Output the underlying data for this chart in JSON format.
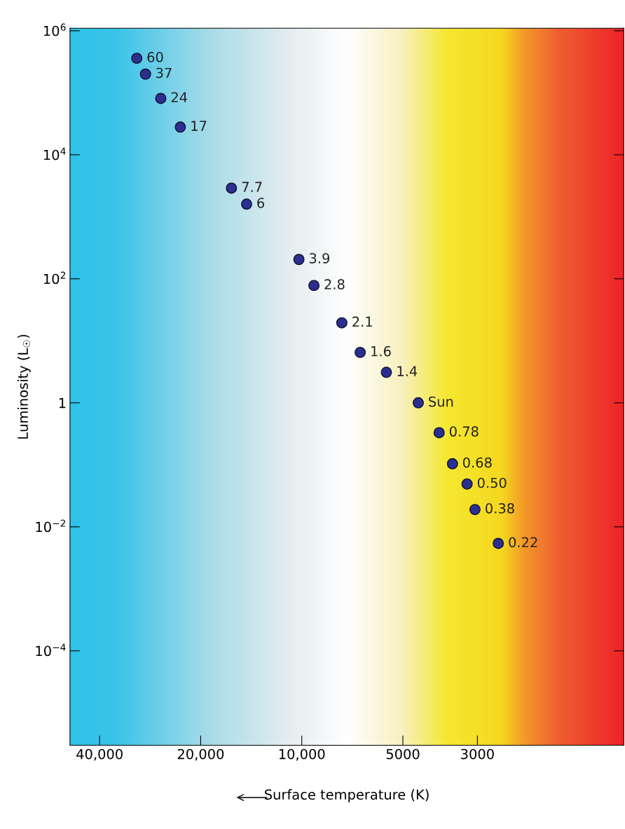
{
  "chart_data": {
    "type": "scatter",
    "xlabel": "Surface temperature (K)",
    "ylabel": "Luminosity (L$_{☉}$)",
    "log": "xy",
    "xlim": [
      49000,
      1100
    ],
    "xticks": [
      {
        "value": 40000,
        "label": "40,000"
      },
      {
        "value": 20000,
        "label": "20,000"
      },
      {
        "value": 10000,
        "label": "10,000"
      },
      5000,
      3000
    ],
    "ylim": [
      3e-06,
      1100000.0
    ],
    "yticks": [
      {
        "value": 0.0001,
        "label": "10$^{−4}$"
      },
      {
        "value": 0.01,
        "label": "10$^{−2}$"
      },
      1,
      {
        "value": 100,
        "label": "10$^{2}$"
      },
      {
        "value": 10000,
        "label": "10$^{4}$"
      },
      {
        "value": 1000000,
        "label": "10$^{6}$"
      }
    ],
    "grid": false,
    "marker": "circle",
    "x": [
      31000,
      29200,
      26300,
      23000,
      16200,
      14600,
      10200,
      9200,
      7600,
      6700,
      5600,
      4500,
      3900,
      3560,
      3220,
      3050,
      2600
    ],
    "series": [
      {
        "color": "#2b2f8f",
        "values": [
          360000,
          200000,
          81000,
          28000,
          2900,
          1600,
          205,
          78,
          19.5,
          6.5,
          3.1,
          1,
          0.33,
          0.104,
          0.049,
          0.019,
          0.0054
        ]
      }
    ],
    "annotations": [
      {
        "text": "60",
        "x": 31000,
        "y": 360000
      },
      {
        "text": "37",
        "x": 29200,
        "y": 200000
      },
      {
        "text": "24",
        "x": 26300,
        "y": 81000
      },
      {
        "text": "17",
        "x": 23000,
        "y": 28000
      },
      {
        "text": "7.7",
        "x": 16200,
        "y": 2900
      },
      {
        "text": "6",
        "x": 14600,
        "y": 1600
      },
      {
        "text": "3.9",
        "x": 10200,
        "y": 205
      },
      {
        "text": "2.8",
        "x": 9200,
        "y": 78
      },
      {
        "text": "2.1",
        "x": 7600,
        "y": 19.5
      },
      {
        "text": "1.6",
        "x": 6700,
        "y": 6.5
      },
      {
        "text": "1.4",
        "x": 5600,
        "y": 3.1
      },
      {
        "text": "Sun",
        "x": 4500,
        "y": 1
      },
      {
        "text": "0.78",
        "x": 3900,
        "y": 0.33
      },
      {
        "text": "0.68",
        "x": 3560,
        "y": 0.104
      },
      {
        "text": "0.50",
        "x": 3220,
        "y": 0.049
      },
      {
        "text": "0.38",
        "x": 3050,
        "y": 0.019
      },
      {
        "text": "0.22",
        "x": 2600,
        "y": 0.0054
      }
    ]
  }
}
